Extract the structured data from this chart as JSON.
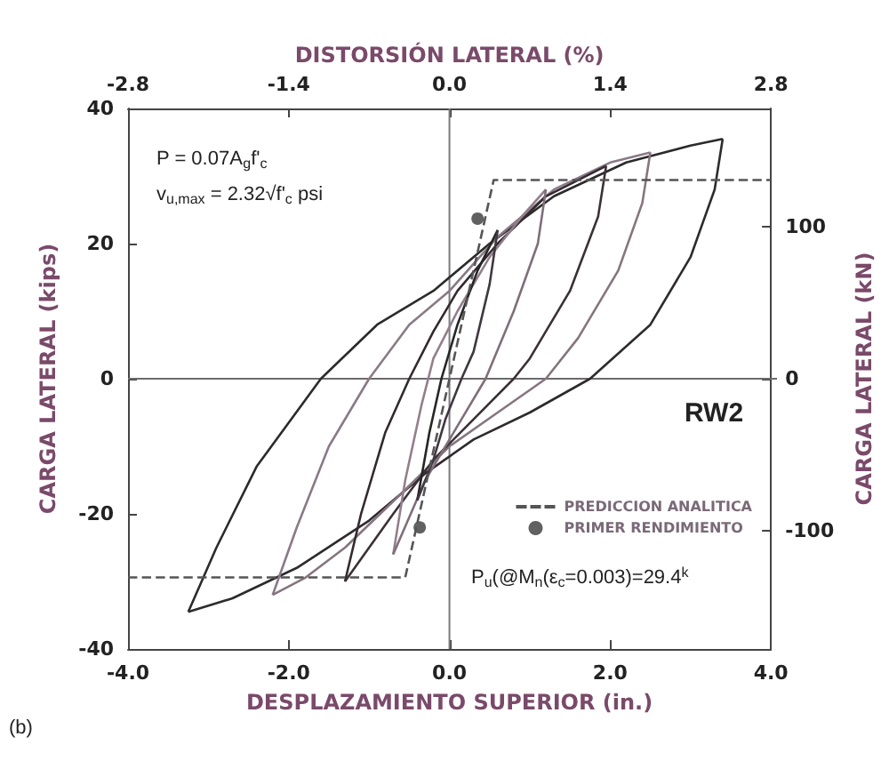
{
  "chart_data": {
    "type": "line",
    "x2label": "DISTORSIÓN LATERAL (%)",
    "xlabel": "DESPLAZAMIENTO SUPERIOR (in.)",
    "ylabel": "CARGA LATERAL (kips)",
    "y2label": "CARGA LATERAL (kN)",
    "xlim": [
      -4,
      4
    ],
    "xticks": [
      {
        "value": -4,
        "label": "-4.0"
      },
      {
        "value": -2,
        "label": "-2.0"
      },
      {
        "value": 0,
        "label": "0.0"
      },
      {
        "value": 2,
        "label": "2.0"
      },
      {
        "value": 4,
        "label": "4.0"
      }
    ],
    "x2lim": [
      -2.8,
      2.8
    ],
    "x2ticks": [
      {
        "value": -2.8,
        "label": "-2.8"
      },
      {
        "value": -1.4,
        "label": "-1.4"
      },
      {
        "value": 0,
        "label": "0.0"
      },
      {
        "value": 1.4,
        "label": "1.4"
      },
      {
        "value": 2.8,
        "label": "2.8"
      }
    ],
    "ylim": [
      -40,
      40
    ],
    "yticks": [
      -40,
      -20,
      0,
      20,
      40
    ],
    "y2lim": [
      -178,
      178
    ],
    "y2ticks": [
      -100,
      0,
      100
    ],
    "grid": false,
    "legend": "bottom right",
    "annotations": [
      "P = 0.07A$_{g}$f'$_{c}$",
      "v$_{u,max}$ = 2.32√f'$_{c}$ psi",
      "RW2",
      "P$_{u}$(@M$_{n}$(ε$_{c}$=0.003)=29.4$^{k}$",
      "(b)"
    ],
    "ref_lines": [
      {
        "axis": "y",
        "value": 0,
        "color": "#6b6b6b"
      },
      {
        "axis": "x",
        "value": 0,
        "color": "#7a7a7a"
      }
    ],
    "series": [
      {
        "type": "line",
        "color": "#2b2b2b",
        "marker": "none",
        "x": [
          -3.25,
          -2.9,
          -2.4,
          -1.6,
          -0.9,
          -0.2,
          0.5,
          1.3,
          2.2,
          3.0,
          3.4
        ],
        "values": [
          -34.5,
          -25,
          -13,
          0,
          8,
          13,
          20,
          27,
          32,
          34.5,
          35.5
        ]
      },
      {
        "type": "line",
        "color": "#2f2a2e",
        "marker": "none",
        "x": [
          3.4,
          3.3,
          3.0,
          2.5,
          1.75,
          1.0,
          0.3,
          -0.3,
          -1.0,
          -1.9,
          -2.7,
          -3.25
        ],
        "values": [
          35.5,
          28,
          18,
          8,
          0,
          -5,
          -9,
          -14,
          -21,
          -28,
          -32.5,
          -34.5
        ]
      },
      {
        "type": "line",
        "color": "#8a7a86",
        "marker": "none",
        "x": [
          -2.2,
          -1.9,
          -1.5,
          -1.0,
          -0.5,
          0,
          0.6,
          1.3,
          2.0,
          2.5
        ],
        "values": [
          -32,
          -22,
          -10,
          0,
          8,
          13,
          21,
          28,
          32,
          33.5
        ]
      },
      {
        "type": "line",
        "color": "#85757f",
        "marker": "none",
        "x": [
          2.5,
          2.4,
          2.1,
          1.6,
          1.2,
          0.6,
          0,
          -0.6,
          -1.3,
          -1.8,
          -2.2
        ],
        "values": [
          33.5,
          26,
          16,
          6,
          0,
          -5,
          -10,
          -17,
          -25,
          -29.5,
          -32
        ]
      },
      {
        "type": "line",
        "color": "#332a30",
        "marker": "none",
        "x": [
          -1.3,
          -1.1,
          -0.8,
          -0.5,
          -0.2,
          0.1,
          0.6,
          1.2,
          1.95
        ],
        "values": [
          -30,
          -20,
          -8,
          0,
          7,
          13,
          20,
          27,
          31.5
        ]
      },
      {
        "type": "line",
        "color": "#3a3036",
        "marker": "none",
        "x": [
          1.95,
          1.85,
          1.5,
          1.0,
          0.8,
          0.3,
          -0.2,
          -0.7,
          -1.3
        ],
        "values": [
          31.5,
          24,
          13,
          3,
          0,
          -6,
          -12,
          -20,
          -30
        ]
      },
      {
        "type": "line",
        "color": "#937f8c",
        "marker": "none",
        "x": [
          -0.7,
          -0.55,
          -0.35,
          -0.2,
          0.1,
          0.5,
          0.9,
          1.2
        ],
        "values": [
          -26,
          -15,
          -4,
          3,
          10,
          18,
          24,
          28
        ]
      },
      {
        "type": "line",
        "color": "#7f6f7a",
        "marker": "none",
        "x": [
          1.2,
          1.1,
          0.8,
          0.45,
          0.1,
          -0.3,
          -0.7
        ],
        "values": [
          28,
          20,
          10,
          0,
          -7,
          -15,
          -26
        ]
      },
      {
        "type": "line",
        "color": "#262626",
        "marker": "none",
        "x": [
          -0.4,
          -0.25,
          -0.1,
          0.1,
          0.35,
          0.6
        ],
        "values": [
          -18,
          -8,
          0,
          8,
          16,
          22
        ]
      },
      {
        "type": "line",
        "color": "#403840",
        "marker": "none",
        "x": [
          0.6,
          0.5,
          0.3,
          0.15,
          -0.05,
          -0.2,
          -0.4
        ],
        "values": [
          22,
          14,
          4,
          0,
          -6,
          -12,
          -18
        ]
      },
      {
        "type": "line",
        "name": "PREDICCION ANALITICA",
        "color": "#555555",
        "marker": "none",
        "line_style": "dashed",
        "x": [
          -4,
          -0.55,
          0.55,
          4
        ],
        "values": [
          -29.4,
          -29.4,
          29.4,
          29.4
        ]
      },
      {
        "type": "scatter",
        "name": "PRIMER RENDIMIENTO",
        "color": "#3a3a3a",
        "marker": "circle",
        "x": [
          0.35,
          -0.37
        ],
        "values": [
          23.7,
          -22
        ]
      }
    ]
  }
}
